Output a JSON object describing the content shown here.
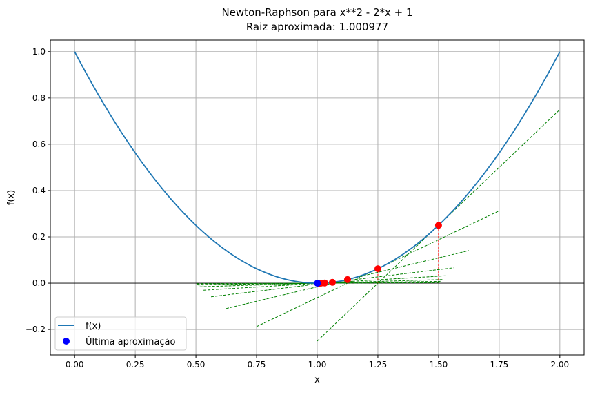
{
  "chart_data": {
    "type": "line",
    "title": "Newton-Raphson para x**2 - 2*x + 1",
    "subtitle": "Raiz aproximada: 1.000977",
    "xlabel": "x",
    "ylabel": "f(x)",
    "xlim": [
      -0.1,
      2.1
    ],
    "ylim": [
      -0.31,
      1.05
    ],
    "grid": true,
    "legend_placement": "lower-left",
    "x_ticks": [
      "0.00",
      "0.25",
      "0.50",
      "0.75",
      "1.00",
      "1.25",
      "1.50",
      "1.75",
      "2.00"
    ],
    "y_ticks": [
      "−0.2",
      "0.0",
      "0.2",
      "0.4",
      "0.6",
      "0.8",
      "1.0"
    ],
    "function": "x**2 - 2*x + 1",
    "curve_range": [
      0,
      2
    ],
    "iterates_x": [
      1.5,
      1.25,
      1.125,
      1.0625,
      1.03125,
      1.015625,
      1.0078125,
      1.00390625,
      1.001953125
    ],
    "final_x": 1.000977,
    "tangent_half_width": 0.5,
    "series": [
      {
        "name": "f(x)",
        "color": "#1f77b4"
      },
      {
        "name": "Última aproximação",
        "color": "#0000ff"
      }
    ],
    "colors": {
      "iterates": "#ff0000",
      "tangents": "#008000",
      "axis_line": "#000000"
    }
  }
}
